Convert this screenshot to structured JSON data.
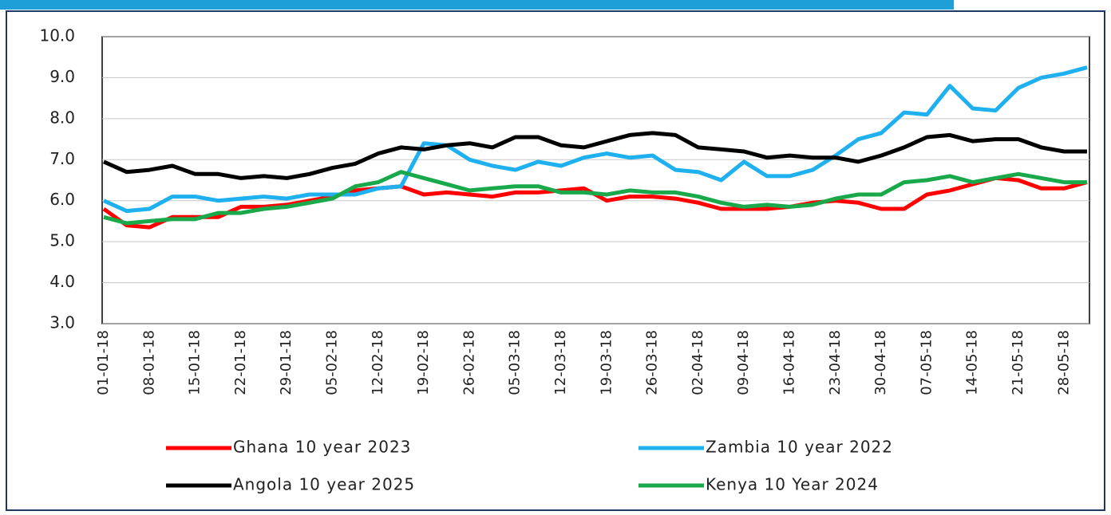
{
  "chart_data": {
    "type": "line",
    "categories": [
      "01-01-18",
      null,
      "08-01-18",
      null,
      "15-01-18",
      null,
      "22-01-18",
      null,
      "29-01-18",
      null,
      "05-02-18",
      null,
      "12-02-18",
      null,
      "19-02-18",
      null,
      "26-02-18",
      null,
      "05-03-18",
      null,
      "12-03-18",
      null,
      "19-03-18",
      null,
      "26-03-18",
      null,
      "02-04-18",
      null,
      "09-04-18",
      null,
      "16-04-18",
      null,
      "23-04-18",
      null,
      "30-04-18",
      null,
      "07-05-18",
      null,
      "14-05-18",
      null,
      "21-05-18",
      null,
      "28-05-18",
      null
    ],
    "series": [
      {
        "name": "Ghana 10 year 2023",
        "color": "#ff0000",
        "values": [
          5.8,
          5.4,
          5.35,
          5.6,
          5.6,
          5.6,
          5.85,
          5.85,
          5.9,
          6.0,
          6.1,
          6.25,
          6.3,
          6.35,
          6.15,
          6.2,
          6.15,
          6.1,
          6.2,
          6.2,
          6.25,
          6.3,
          6.0,
          6.1,
          6.1,
          6.05,
          5.95,
          5.8,
          5.8,
          5.8,
          5.85,
          5.95,
          6.0,
          5.95,
          5.8,
          5.8,
          6.15,
          6.25,
          6.4,
          6.55,
          6.5,
          6.3,
          6.3,
          6.45
        ]
      },
      {
        "name": "Zambia 10 year 2022",
        "color": "#1fb0f0",
        "values": [
          6.0,
          5.75,
          5.8,
          6.1,
          6.1,
          6.0,
          6.05,
          6.1,
          6.05,
          6.15,
          6.15,
          6.15,
          6.3,
          6.35,
          7.4,
          7.35,
          7.0,
          6.85,
          6.75,
          6.95,
          6.85,
          7.05,
          7.15,
          7.05,
          7.1,
          6.75,
          6.7,
          6.5,
          6.95,
          6.6,
          6.6,
          6.75,
          7.1,
          7.5,
          7.65,
          8.15,
          8.1,
          8.8,
          8.25,
          8.2,
          8.75,
          9.0,
          9.1,
          9.25
        ]
      },
      {
        "name": "Angola 10 year 2025",
        "color": "#000000",
        "values": [
          6.95,
          6.7,
          6.75,
          6.85,
          6.65,
          6.65,
          6.55,
          6.6,
          6.55,
          6.65,
          6.8,
          6.9,
          7.15,
          7.3,
          7.25,
          7.35,
          7.4,
          7.3,
          7.55,
          7.55,
          7.35,
          7.3,
          7.45,
          7.6,
          7.65,
          7.6,
          7.3,
          7.25,
          7.2,
          7.05,
          7.1,
          7.05,
          7.05,
          6.95,
          7.1,
          7.3,
          7.55,
          7.6,
          7.45,
          7.5,
          7.5,
          7.3,
          7.2,
          7.2
        ]
      },
      {
        "name": "Kenya 10 Year 2024",
        "color": "#19a94b",
        "values": [
          5.6,
          5.45,
          5.5,
          5.55,
          5.55,
          5.7,
          5.7,
          5.8,
          5.85,
          5.95,
          6.05,
          6.35,
          6.45,
          6.7,
          6.55,
          6.4,
          6.25,
          6.3,
          6.35,
          6.35,
          6.2,
          6.2,
          6.15,
          6.25,
          6.2,
          6.2,
          6.1,
          5.95,
          5.85,
          5.9,
          5.85,
          5.9,
          6.05,
          6.15,
          6.15,
          6.45,
          6.5,
          6.6,
          6.45,
          6.55,
          6.65,
          6.55,
          6.45,
          6.45
        ]
      }
    ],
    "ylim": [
      3,
      10
    ],
    "yticks": [
      {
        "value": 3,
        "label": "3.0"
      },
      {
        "value": 4,
        "label": "4.0"
      },
      {
        "value": 5,
        "label": "5.0"
      },
      {
        "value": 6,
        "label": "6.0"
      },
      {
        "value": 7,
        "label": "7.0"
      },
      {
        "value": 8,
        "label": "8.0"
      },
      {
        "value": 9,
        "label": "9.0"
      },
      {
        "value": 10,
        "label": "10.0"
      }
    ],
    "grid": true
  }
}
